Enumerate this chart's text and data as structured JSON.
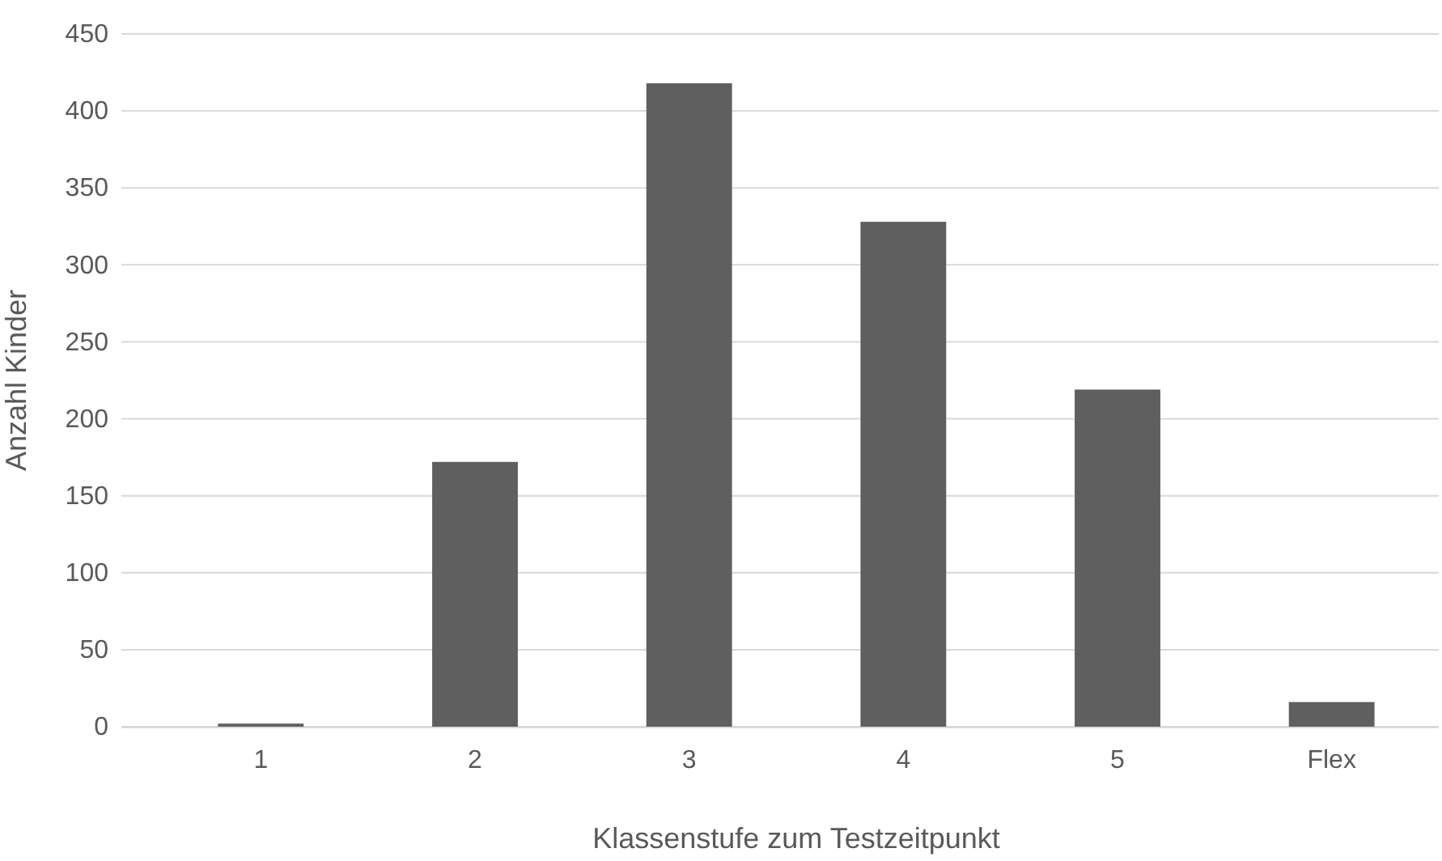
{
  "chart_data": {
    "type": "bar",
    "xlabel": "Klassenstufe zum Testzeitpunkt",
    "ylabel": "Anzahl Kinder",
    "categories": [
      "1",
      "2",
      "3",
      "4",
      "5",
      "Flex"
    ],
    "values": [
      2,
      172,
      418,
      328,
      219,
      16
    ],
    "color": "#5f5f5f",
    "ylim": [
      0,
      450
    ],
    "yticks": [
      0,
      50,
      100,
      150,
      200,
      250,
      300,
      350,
      400,
      450
    ],
    "grid": "y"
  }
}
